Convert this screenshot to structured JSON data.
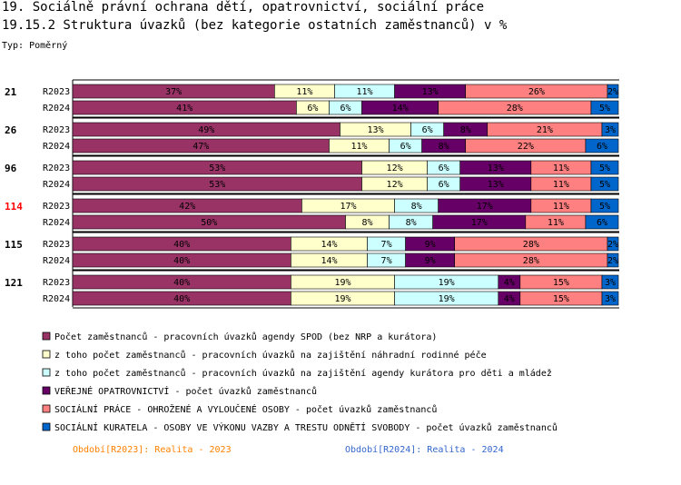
{
  "title_line1": "19. Sociálně právní ochrana dětí, opatrovnictví, sociální práce",
  "title_line2": "19.15.2 Struktura úvazků (bez kategorie ostatních zaměstnanců) v %",
  "subtitle": "Typ: Poměrný",
  "chart_data": {
    "type": "bar",
    "orientation": "horizontal-stacked-100",
    "groups": [
      {
        "label": "21",
        "highlight": false,
        "rows": [
          {
            "period": "R2023",
            "values": [
              37,
              11,
              11,
              13,
              26,
              2
            ]
          },
          {
            "period": "R2024",
            "values": [
              41,
              6,
              6,
              14,
              28,
              5
            ]
          }
        ]
      },
      {
        "label": "26",
        "highlight": false,
        "rows": [
          {
            "period": "R2023",
            "values": [
              49,
              13,
              6,
              8,
              21,
              3
            ]
          },
          {
            "period": "R2024",
            "values": [
              47,
              11,
              6,
              8,
              22,
              6
            ]
          }
        ]
      },
      {
        "label": "96",
        "highlight": false,
        "rows": [
          {
            "period": "R2023",
            "values": [
              53,
              12,
              6,
              13,
              11,
              5
            ]
          },
          {
            "period": "R2024",
            "values": [
              53,
              12,
              6,
              13,
              11,
              5
            ]
          }
        ]
      },
      {
        "label": "114",
        "highlight": true,
        "rows": [
          {
            "period": "R2023",
            "values": [
              42,
              17,
              8,
              17,
              11,
              5
            ]
          },
          {
            "period": "R2024",
            "values": [
              50,
              8,
              8,
              17,
              11,
              6
            ]
          }
        ]
      },
      {
        "label": "115",
        "highlight": false,
        "rows": [
          {
            "period": "R2023",
            "values": [
              40,
              14,
              7,
              9,
              28,
              2
            ]
          },
          {
            "period": "R2024",
            "values": [
              40,
              14,
              7,
              9,
              28,
              2
            ]
          }
        ]
      },
      {
        "label": "121",
        "highlight": false,
        "rows": [
          {
            "period": "R2023",
            "values": [
              40,
              19,
              19,
              4,
              15,
              3
            ]
          },
          {
            "period": "R2024",
            "values": [
              40,
              19,
              19,
              4,
              15,
              3
            ]
          }
        ]
      }
    ],
    "series": [
      {
        "name": "Počet zaměstnanců - pracovních úvazků agendy SPOD (bez NRP a kurátora)",
        "color": "#993366"
      },
      {
        "name": "z toho počet zaměstnanců - pracovních úvazků na zajištění náhradní rodinné péče",
        "color": "#ffffcc"
      },
      {
        "name": "z toho počet zaměstnanců - pracovních úvazků na zajištění agendy kurátora pro děti a mládež",
        "color": "#ccffff"
      },
      {
        "name": "VEŘEJNÉ OPATROVNICTVÍ - počet úvazků zaměstnanců",
        "color": "#660066"
      },
      {
        "name": "SOCIÁLNÍ PRÁCE - OHROŽENÉ A VYLOUČENÉ OSOBY - počet úvazků zaměstnanců",
        "color": "#ff8080"
      },
      {
        "name": "SOCIÁLNÍ KURATELA - OSOBY VE VÝKONU VAZBY A TRESTU ODNĚTÍ SVOBODY - počet úvazků zaměstnanců",
        "color": "#0066cc"
      }
    ],
    "value_suffix": "%",
    "xlim": [
      0,
      100
    ],
    "highlight_color": "#ff0000"
  },
  "footer": {
    "left": {
      "text": "Období[R2023]: Realita - 2023",
      "color": "#ff8000"
    },
    "right": {
      "text": "Období[R2024]: Realita - 2024",
      "color": "#3366cc"
    }
  }
}
